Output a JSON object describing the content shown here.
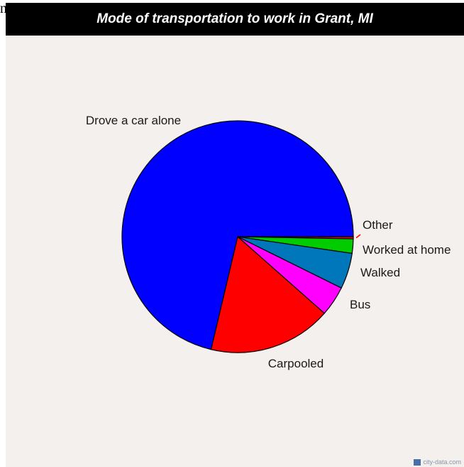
{
  "stray_text": "n",
  "chart_data": {
    "type": "pie",
    "title": "Mode of transportation to work in Grant, MI",
    "slices": [
      {
        "label": "Other",
        "value": 0.3,
        "color": "#ff0000"
      },
      {
        "label": "Worked at home",
        "value": 2.0,
        "color": "#00cc00"
      },
      {
        "label": "Walked",
        "value": 5.0,
        "color": "#0077bb"
      },
      {
        "label": "Bus",
        "value": 4.2,
        "color": "#ff00ff"
      },
      {
        "label": "Carpooled",
        "value": 17.2,
        "color": "#ff0000"
      },
      {
        "label": "Drove a car alone",
        "value": 71.3,
        "color": "#0000ff"
      }
    ]
  },
  "watermark": {
    "text": "city-data.com",
    "icon": "city-data-logo-icon"
  }
}
